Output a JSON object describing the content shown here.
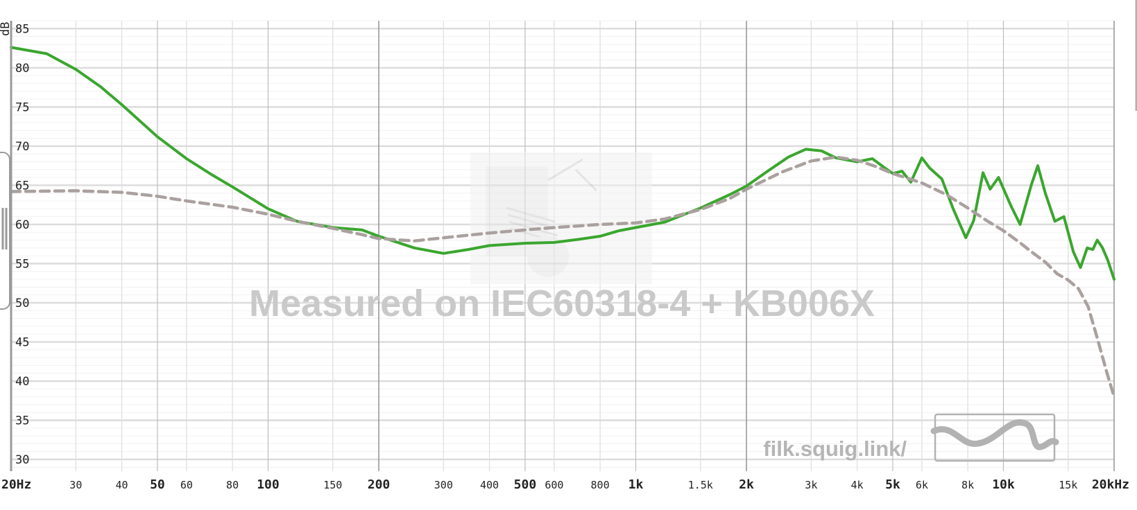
{
  "colors": {
    "measurement": "#3aa62e",
    "target": "#aaa09e",
    "grid_minor": "#dddddd",
    "grid_major": "#999999",
    "grid_h": "#e3e3e3",
    "watermark": "#c9c9c9",
    "site": "#b5b5b5"
  },
  "watermark": {
    "text": "Measured on IEC60318-4 + KB006X"
  },
  "site": {
    "label": "filk.squig.link/"
  },
  "icons": {
    "logo": "squiggle-logo-icon",
    "handle": "resize-handle-icon"
  },
  "chart_data": {
    "type": "line",
    "x_scale": "log",
    "xlim": [
      20,
      20000
    ],
    "ylim": [
      28.5,
      86
    ],
    "grid": true,
    "ylabel": "dB",
    "y_ticks": [
      85,
      80,
      75,
      70,
      65,
      60,
      55,
      50,
      45,
      40,
      35,
      30
    ],
    "x_ticks": [
      {
        "value": 20,
        "label": "20Hz",
        "major": true
      },
      {
        "value": 30,
        "label": "30",
        "major": false
      },
      {
        "value": 40,
        "label": "40",
        "major": false
      },
      {
        "value": 50,
        "label": "50",
        "major": true
      },
      {
        "value": 60,
        "label": "60",
        "major": false
      },
      {
        "value": 80,
        "label": "80",
        "major": false
      },
      {
        "value": 100,
        "label": "100",
        "major": true
      },
      {
        "value": 150,
        "label": "150",
        "major": false
      },
      {
        "value": 200,
        "label": "200",
        "major": true
      },
      {
        "value": 300,
        "label": "300",
        "major": false
      },
      {
        "value": 400,
        "label": "400",
        "major": false
      },
      {
        "value": 500,
        "label": "500",
        "major": true
      },
      {
        "value": 600,
        "label": "600",
        "major": false
      },
      {
        "value": 800,
        "label": "800",
        "major": false
      },
      {
        "value": 1000,
        "label": "1k",
        "major": true
      },
      {
        "value": 1500,
        "label": "1.5k",
        "major": false
      },
      {
        "value": 2000,
        "label": "2k",
        "major": true
      },
      {
        "value": 3000,
        "label": "3k",
        "major": false
      },
      {
        "value": 4000,
        "label": "4k",
        "major": false
      },
      {
        "value": 5000,
        "label": "5k",
        "major": true
      },
      {
        "value": 6000,
        "label": "6k",
        "major": false
      },
      {
        "value": 8000,
        "label": "8k",
        "major": false
      },
      {
        "value": 10000,
        "label": "10k",
        "major": true
      },
      {
        "value": 15000,
        "label": "15k",
        "major": false
      },
      {
        "value": 20000,
        "label": "20kHz",
        "major": true
      }
    ],
    "x_dark_lines": [
      200,
      2000,
      20000
    ],
    "series": [
      {
        "style": "solid",
        "points": [
          [
            20,
            82.6
          ],
          [
            25,
            81.8
          ],
          [
            30,
            79.8
          ],
          [
            35,
            77.6
          ],
          [
            40,
            75.3
          ],
          [
            50,
            71.2
          ],
          [
            60,
            68.4
          ],
          [
            70,
            66.4
          ],
          [
            80,
            64.8
          ],
          [
            100,
            62.0
          ],
          [
            120,
            60.4
          ],
          [
            150,
            59.6
          ],
          [
            180,
            59.3
          ],
          [
            200,
            58.5
          ],
          [
            250,
            57.0
          ],
          [
            300,
            56.3
          ],
          [
            350,
            56.8
          ],
          [
            400,
            57.3
          ],
          [
            500,
            57.6
          ],
          [
            600,
            57.7
          ],
          [
            700,
            58.1
          ],
          [
            800,
            58.5
          ],
          [
            900,
            59.2
          ],
          [
            1000,
            59.6
          ],
          [
            1200,
            60.3
          ],
          [
            1500,
            62.1
          ],
          [
            1800,
            63.8
          ],
          [
            2000,
            64.9
          ],
          [
            2300,
            66.9
          ],
          [
            2600,
            68.6
          ],
          [
            2900,
            69.6
          ],
          [
            3200,
            69.4
          ],
          [
            3500,
            68.5
          ],
          [
            4000,
            68.0
          ],
          [
            4400,
            68.4
          ],
          [
            4700,
            67.4
          ],
          [
            5000,
            66.5
          ],
          [
            5300,
            66.8
          ],
          [
            5600,
            65.4
          ],
          [
            6000,
            68.5
          ],
          [
            6300,
            67.2
          ],
          [
            6800,
            65.8
          ],
          [
            7300,
            62.0
          ],
          [
            7900,
            58.3
          ],
          [
            8300,
            60.5
          ],
          [
            8800,
            66.6
          ],
          [
            9200,
            64.5
          ],
          [
            9700,
            66.0
          ],
          [
            10500,
            62.3
          ],
          [
            11100,
            60.0
          ],
          [
            11900,
            65.0
          ],
          [
            12400,
            67.5
          ],
          [
            13000,
            64.0
          ],
          [
            13800,
            60.4
          ],
          [
            14600,
            61.0
          ],
          [
            15500,
            56.5
          ],
          [
            16200,
            54.5
          ],
          [
            16900,
            57.0
          ],
          [
            17500,
            56.8
          ],
          [
            18000,
            58.0
          ],
          [
            18600,
            57.0
          ],
          [
            19200,
            55.5
          ],
          [
            20000,
            53.0
          ]
        ]
      },
      {
        "style": "dashed",
        "points": [
          [
            20,
            64.2
          ],
          [
            30,
            64.3
          ],
          [
            40,
            64.1
          ],
          [
            50,
            63.6
          ],
          [
            60,
            63.0
          ],
          [
            80,
            62.2
          ],
          [
            100,
            61.3
          ],
          [
            120,
            60.4
          ],
          [
            150,
            59.5
          ],
          [
            180,
            58.7
          ],
          [
            200,
            58.2
          ],
          [
            250,
            57.9
          ],
          [
            300,
            58.3
          ],
          [
            400,
            58.9
          ],
          [
            500,
            59.3
          ],
          [
            600,
            59.6
          ],
          [
            800,
            60.0
          ],
          [
            1000,
            60.2
          ],
          [
            1200,
            60.7
          ],
          [
            1500,
            61.9
          ],
          [
            1800,
            63.3
          ],
          [
            2000,
            64.5
          ],
          [
            2500,
            66.7
          ],
          [
            3000,
            68.1
          ],
          [
            3500,
            68.6
          ],
          [
            4000,
            68.2
          ],
          [
            4500,
            67.4
          ],
          [
            5000,
            66.5
          ],
          [
            6000,
            65.3
          ],
          [
            7000,
            63.8
          ],
          [
            8000,
            62.1
          ],
          [
            9000,
            60.5
          ],
          [
            10000,
            59.2
          ],
          [
            11000,
            57.8
          ],
          [
            12000,
            56.4
          ],
          [
            13000,
            55.2
          ],
          [
            14000,
            53.7
          ],
          [
            15000,
            52.9
          ],
          [
            16000,
            51.8
          ],
          [
            17000,
            49.5
          ],
          [
            18000,
            45.5
          ],
          [
            19000,
            41.5
          ],
          [
            20000,
            38.0
          ]
        ]
      }
    ]
  }
}
